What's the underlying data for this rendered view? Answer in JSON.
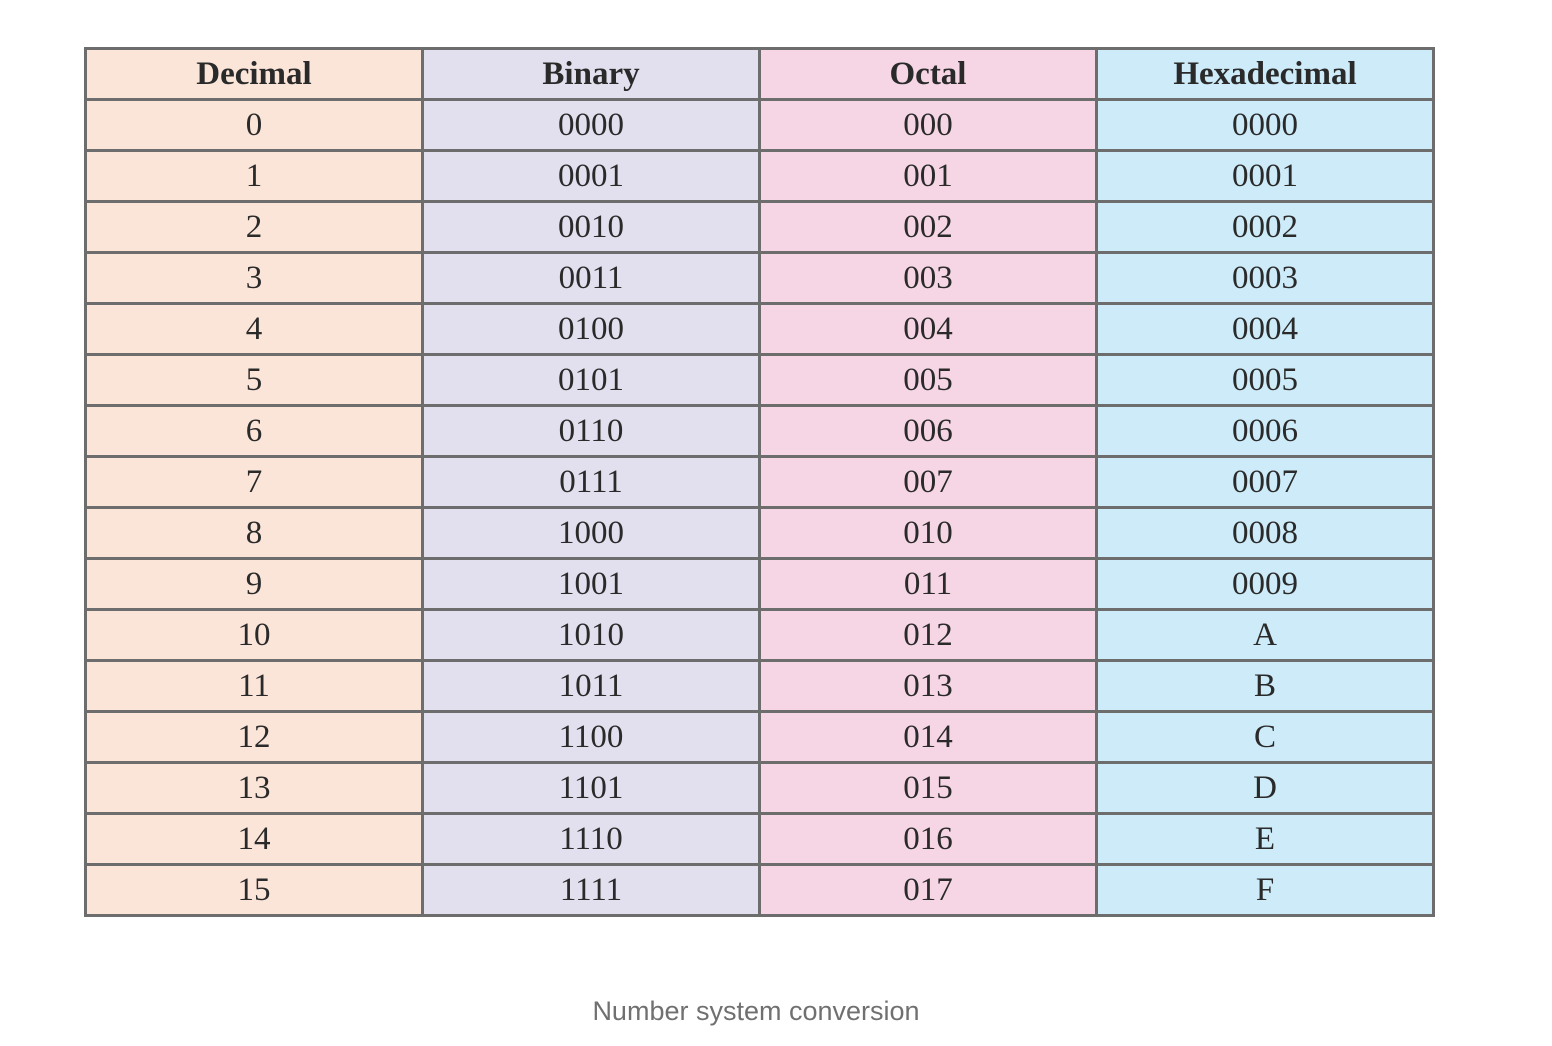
{
  "table": {
    "headers": [
      "Decimal",
      "Binary",
      "Octal",
      "Hexadecimal"
    ],
    "rows": [
      [
        "0",
        "0000",
        "000",
        "0000"
      ],
      [
        "1",
        "0001",
        "001",
        "0001"
      ],
      [
        "2",
        "0010",
        "002",
        "0002"
      ],
      [
        "3",
        "0011",
        "003",
        "0003"
      ],
      [
        "4",
        "0100",
        "004",
        "0004"
      ],
      [
        "5",
        "0101",
        "005",
        "0005"
      ],
      [
        "6",
        "0110",
        "006",
        "0006"
      ],
      [
        "7",
        "0111",
        "007",
        "0007"
      ],
      [
        "8",
        "1000",
        "010",
        "0008"
      ],
      [
        "9",
        "1001",
        "011",
        "0009"
      ],
      [
        "10",
        "1010",
        "012",
        "A"
      ],
      [
        "11",
        "1011",
        "013",
        "B"
      ],
      [
        "12",
        "1100",
        "014",
        "C"
      ],
      [
        "13",
        "1101",
        "015",
        "D"
      ],
      [
        "14",
        "1110",
        "016",
        "E"
      ],
      [
        "15",
        "1111",
        "017",
        "F"
      ]
    ],
    "column_colors": [
      "#fbe5d9",
      "#e2e0ee",
      "#f6d6e4",
      "#cdebf8"
    ]
  },
  "caption": "Number system conversion"
}
